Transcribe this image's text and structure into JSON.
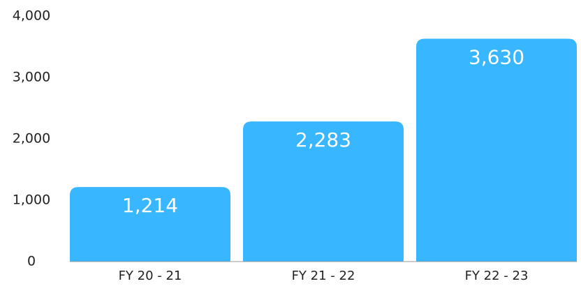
{
  "chart_data": {
    "type": "bar",
    "categories": [
      "FY 20 - 21",
      "FY 21 - 22",
      "FY 22 - 23"
    ],
    "values": [
      1214,
      2283,
      3630
    ],
    "value_labels": [
      "1,214",
      "2,283",
      "3,630"
    ],
    "color": "#38b6ff",
    "ylim": [
      0,
      4000
    ],
    "yticks": [
      0,
      {
        "value": 1000,
        "label": "1,000"
      },
      {
        "value": 2000,
        "label": "2,000"
      },
      {
        "value": 3000,
        "label": "3,000"
      },
      {
        "value": 4000,
        "label": "4,000"
      }
    ],
    "grid": false
  }
}
